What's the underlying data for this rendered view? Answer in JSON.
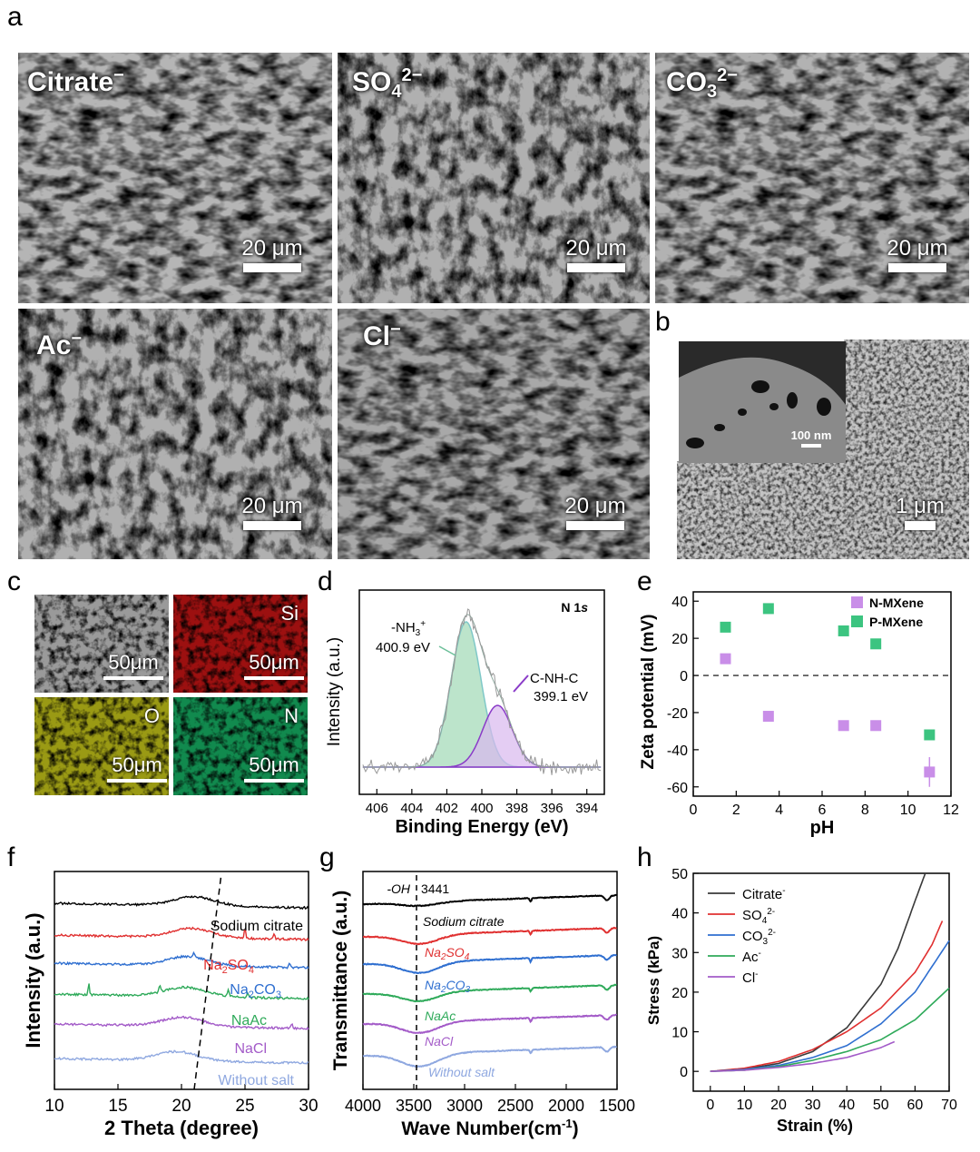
{
  "panel_letters": {
    "a": "a",
    "b": "b",
    "c": "c",
    "d": "d",
    "e": "e",
    "f": "f",
    "g": "g",
    "h": "h"
  },
  "panel_a": {
    "images": [
      {
        "label_main": "Citrate",
        "label_sup": "−",
        "label_sub": "",
        "scale": "20 μm"
      },
      {
        "label_main": "SO",
        "label_sup": "2−",
        "label_sub": "4",
        "scale": "20 μm"
      },
      {
        "label_main": "CO",
        "label_sup": "2−",
        "label_sub": "3",
        "scale": "20 μm"
      },
      {
        "label_main": "Ac",
        "label_sup": "−",
        "label_sub": "",
        "scale": "20 μm"
      },
      {
        "label_main": "Cl",
        "label_sup": "−",
        "label_sub": "",
        "scale": "20 μm"
      }
    ]
  },
  "panel_b": {
    "scale_main": "1 μm",
    "scale_inset": "100 nm"
  },
  "panel_c": {
    "maps": [
      {
        "label": "",
        "scale": "50μm",
        "color": "#8f8f8f"
      },
      {
        "label": "Si",
        "scale": "50μm",
        "color": "#8b0e0e"
      },
      {
        "label": "O",
        "scale": "50μm",
        "color": "#8a8a10"
      },
      {
        "label": "N",
        "scale": "50μm",
        "color": "#0f7a45"
      }
    ]
  },
  "chart_data": [
    {
      "id": "d",
      "type": "line",
      "title": "N 1s",
      "xlabel": "Binding Energy (eV)",
      "ylabel": "Intensity (a.u.)",
      "xlim": [
        407,
        393
      ],
      "x_reversed": true,
      "xticks": [
        406,
        404,
        402,
        400,
        398,
        396,
        394
      ],
      "series": [
        {
          "name": "-NH3+",
          "peak_center": 400.9,
          "peak_label": "400.9 eV",
          "color": "#7fc8a0"
        },
        {
          "name": "C-NH-C",
          "peak_center": 399.1,
          "peak_label": "399.1 eV",
          "color": "#8a3bc8"
        }
      ],
      "annotations": [
        "-NH",
        "3",
        "+",
        "400.9 eV",
        "C-NH-C",
        "399.1 eV"
      ]
    },
    {
      "id": "e",
      "type": "scatter",
      "xlabel": "pH",
      "ylabel": "Zeta potential (mV)",
      "xlim": [
        0,
        12
      ],
      "ylim": [
        -65,
        45
      ],
      "xticks": [
        0,
        2,
        4,
        6,
        8,
        10,
        12
      ],
      "yticks": [
        -60,
        -40,
        -20,
        0,
        20,
        40
      ],
      "legend_position": "top-right",
      "series": [
        {
          "name": "N-MXene",
          "color": "#c98ee8",
          "points": [
            [
              1.5,
              9
            ],
            [
              3.5,
              -22
            ],
            [
              7,
              -27
            ],
            [
              8.5,
              -27
            ],
            [
              11,
              -52
            ]
          ],
          "errors": [
            2,
            2,
            2,
            2,
            8
          ]
        },
        {
          "name": "P-MXene",
          "color": "#3cc480",
          "points": [
            [
              1.5,
              26
            ],
            [
              3.5,
              36
            ],
            [
              7,
              24
            ],
            [
              8.5,
              17
            ],
            [
              11,
              -32
            ]
          ],
          "errors": [
            2,
            2,
            2,
            2,
            2
          ]
        }
      ]
    },
    {
      "id": "f",
      "type": "line",
      "xlabel": "2 Theta (degree)",
      "ylabel": "Intensity (a.u.)",
      "xlim": [
        10,
        30
      ],
      "xticks": [
        10,
        15,
        20,
        25,
        30
      ],
      "series": [
        {
          "name": "Sodium citrate",
          "color": "#000000"
        },
        {
          "name": "Na2SO4",
          "label_main": "Na",
          "label_sub": "2",
          "label_rest": "SO",
          "label_sub2": "4",
          "color": "#e03030"
        },
        {
          "name": "Na2CO3",
          "label_main": "Na",
          "label_sub": "2",
          "label_rest": "CO",
          "label_sub2": "3",
          "color": "#2f6fd0"
        },
        {
          "name": "NaAc",
          "color": "#2faa5a"
        },
        {
          "name": "NaCl",
          "color": "#a35bc8"
        },
        {
          "name": "Without salt",
          "color": "#8fa8e0"
        }
      ]
    },
    {
      "id": "g",
      "type": "line",
      "xlabel": "Wave Number(cm",
      "xlabel_sup": "-1",
      "xlabel_end": ")",
      "ylabel": "Transmittance (a.u.)",
      "xlim": [
        4000,
        1500
      ],
      "x_reversed": true,
      "xticks": [
        4000,
        3500,
        3000,
        2500,
        2000,
        1500
      ],
      "annotation_oh": "-OH",
      "annotation_peak": "3441",
      "series": [
        {
          "name": "Sodium citrate",
          "color": "#000000"
        },
        {
          "name": "Na2SO4",
          "color": "#e03030"
        },
        {
          "name": "Na2CO3",
          "color": "#2f6fd0"
        },
        {
          "name": "NaAc",
          "color": "#2faa5a"
        },
        {
          "name": "NaCl",
          "color": "#a35bc8"
        },
        {
          "name": "Without salt",
          "color": "#8fa8e0"
        }
      ],
      "labels": [
        "Sodium citrate",
        "Na",
        "2",
        "SO",
        "4",
        "Na",
        "2",
        "CO",
        "3",
        "NaAc",
        "NaCl",
        "Without salt"
      ]
    },
    {
      "id": "h",
      "type": "line",
      "xlabel": "Strain (%)",
      "ylabel": "Stress (kPa)",
      "xlim": [
        -5,
        70
      ],
      "ylim": [
        -5,
        50
      ],
      "xticks": [
        0,
        10,
        20,
        30,
        40,
        50,
        60,
        70
      ],
      "yticks": [
        0,
        10,
        20,
        30,
        40,
        50
      ],
      "legend_position": "top-left",
      "series": [
        {
          "name": "Citrate",
          "sup": "-",
          "color": "#3a3a3a",
          "x": [
            0,
            10,
            20,
            30,
            40,
            50,
            55,
            60,
            63
          ],
          "y": [
            0,
            0.6,
            2,
            5,
            11,
            22,
            31,
            43,
            50
          ]
        },
        {
          "name": "SO",
          "sub": "4",
          "sup": "2-",
          "color": "#e03030",
          "x": [
            0,
            10,
            20,
            30,
            40,
            50,
            60,
            65,
            68
          ],
          "y": [
            0,
            0.8,
            2.5,
            5.5,
            10,
            16,
            25,
            32,
            38
          ]
        },
        {
          "name": "CO",
          "sub": "3",
          "sup": "2-",
          "color": "#2f6fd0",
          "x": [
            0,
            10,
            20,
            30,
            40,
            50,
            60,
            70
          ],
          "y": [
            0,
            0.5,
            1.5,
            3.5,
            6.5,
            12,
            20,
            33
          ]
        },
        {
          "name": "Ac",
          "sup": "-",
          "color": "#2faa5a",
          "x": [
            0,
            10,
            20,
            30,
            40,
            50,
            60,
            70
          ],
          "y": [
            0,
            0.3,
            1.2,
            2.8,
            5,
            8,
            13,
            21
          ]
        },
        {
          "name": "Cl",
          "sup": "-",
          "color": "#a35bc8",
          "x": [
            0,
            10,
            20,
            30,
            40,
            50,
            54
          ],
          "y": [
            0,
            0.3,
            1,
            2,
            3.5,
            6,
            7.5
          ]
        }
      ]
    }
  ],
  "colors": {
    "n_mxene": "#c98ee8",
    "p_mxene": "#3cc480"
  }
}
